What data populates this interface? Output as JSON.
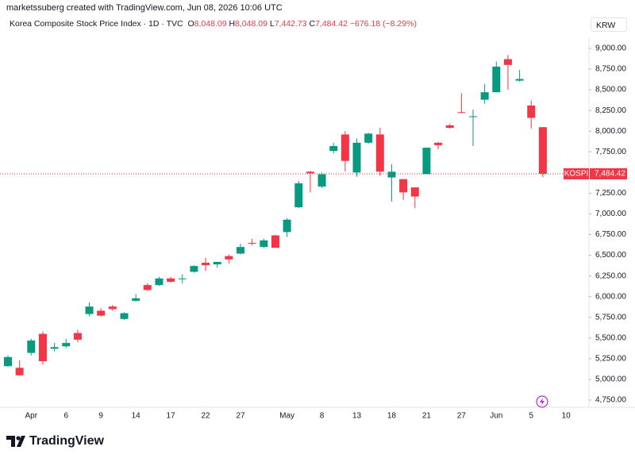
{
  "header": {
    "credit": "marketssuberg created with TradingView.com, Jun 08, 2026 10:06 UTC"
  },
  "chart_data": {
    "type": "candlestick",
    "title": "Korea Composite Stock Price Index · 1D · TVC",
    "legend": {
      "o_label": "O",
      "open": "8,048.09",
      "h_label": "H",
      "high": "8,048.09",
      "l_label": "L",
      "low": "7,442.73",
      "c_label": "C",
      "close": "7,484.42",
      "change": "−676.18 (−8.29%)"
    },
    "currency": "KRW",
    "series_name": "KOSPI",
    "up_color": "#089981",
    "down_color": "#f23645",
    "last_price": {
      "value": 7484.42,
      "label": "7,484.42"
    },
    "categories": [
      null,
      null,
      "Apr",
      null,
      null,
      "6",
      null,
      null,
      "9",
      null,
      null,
      "14",
      null,
      null,
      "17",
      null,
      null,
      "22",
      null,
      null,
      "27",
      null,
      null,
      null,
      "May",
      null,
      null,
      "8",
      null,
      null,
      "13",
      null,
      null,
      "18",
      null,
      null,
      "21",
      null,
      null,
      "27",
      null,
      null,
      "Jun",
      null,
      null,
      "5",
      null,
      null,
      "10"
    ],
    "open": [
      5160,
      5140,
      5320,
      5550,
      5370,
      5400,
      5560,
      5790,
      5830,
      5880,
      5730,
      5950,
      6140,
      6140,
      6220,
      6210,
      6300,
      6410,
      6390,
      6490,
      6520,
      6650,
      6600,
      6740,
      6780,
      7080,
      7510,
      7330,
      7760,
      7960,
      7500,
      7860,
      7960,
      7440,
      7420,
      7320,
      7480,
      7860,
      8070,
      8230,
      8170,
      8380,
      8470,
      8870,
      8610,
      8310,
      8048.09,
      null,
      null
    ],
    "high": [
      5290,
      5230,
      5490,
      5580,
      5440,
      5490,
      5600,
      5930,
      5860,
      5900,
      5810,
      6030,
      6160,
      6240,
      6240,
      6270,
      6380,
      6470,
      6420,
      6510,
      6640,
      6700,
      6700,
      6750,
      6950,
      7400,
      7520,
      7500,
      7860,
      8000,
      7910,
      7980,
      8040,
      7600,
      7420,
      7320,
      7800,
      7870,
      8090,
      8460,
      8260,
      8570,
      8840,
      8920,
      8740,
      8370,
      8048.09,
      null,
      null
    ],
    "low": [
      5150,
      5050,
      5290,
      5180,
      5340,
      5380,
      5450,
      5760,
      5760,
      5830,
      5720,
      5940,
      6070,
      6130,
      6170,
      6160,
      6290,
      6310,
      6350,
      6400,
      6510,
      6620,
      6590,
      6590,
      6720,
      7070,
      7260,
      7310,
      7730,
      7510,
      7450,
      7850,
      7460,
      7150,
      7170,
      7070,
      7480,
      7780,
      8030,
      8220,
      7820,
      8330,
      8470,
      8500,
      8600,
      8030,
      7442.73,
      null,
      null
    ],
    "close": [
      5270,
      5050,
      5470,
      5220,
      5390,
      5440,
      5480,
      5880,
      5770,
      5850,
      5800,
      5980,
      6080,
      6220,
      6180,
      6220,
      6370,
      6380,
      6420,
      6450,
      6600,
      6640,
      6680,
      6590,
      6930,
      7370,
      7490,
      7480,
      7820,
      7640,
      7860,
      7970,
      7510,
      7510,
      7260,
      7210,
      7800,
      7830,
      8040,
      8220,
      8180,
      8470,
      8780,
      8800,
      8630,
      8160,
      7484.42,
      null,
      null
    ],
    "ylim": [
      4660,
      9110
    ],
    "yticks": [
      {
        "value": 4750,
        "label": "4,750.00"
      },
      {
        "value": 5000,
        "label": "5,000.00"
      },
      {
        "value": 5250,
        "label": "5,250.00"
      },
      {
        "value": 5500,
        "label": "5,500.00"
      },
      {
        "value": 5750,
        "label": "5,750.00"
      },
      {
        "value": 6000,
        "label": "6,000.00"
      },
      {
        "value": 6250,
        "label": "6,250.00"
      },
      {
        "value": 6500,
        "label": "6,500.00"
      },
      {
        "value": 6750,
        "label": "6,750.00"
      },
      {
        "value": 7000,
        "label": "7,000.00"
      },
      {
        "value": 7250,
        "label": "7,250.00"
      },
      {
        "value": 7500,
        "label": "7,500.00"
      },
      {
        "value": 7750,
        "label": "7,750.00"
      },
      {
        "value": 8000,
        "label": "8,000.00"
      },
      {
        "value": 8250,
        "label": "8,250.00"
      },
      {
        "value": 8500,
        "label": "8,500.00"
      },
      {
        "value": 8750,
        "label": "8,750.00"
      },
      {
        "value": 9000,
        "label": "9,000.00"
      }
    ]
  },
  "footer": {
    "logo": "TradingView"
  }
}
